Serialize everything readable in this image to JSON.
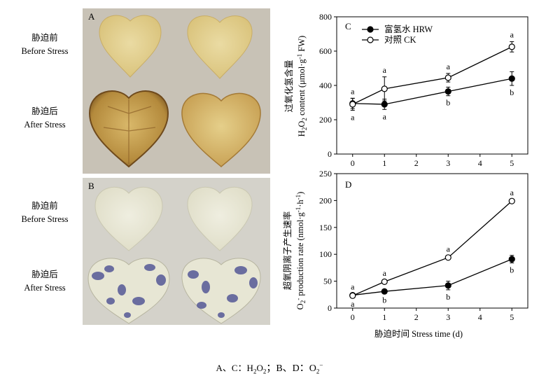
{
  "row_labels": {
    "A_before_cn": "胁迫前",
    "A_before_en": "Before Stress",
    "A_after_cn": "胁迫后",
    "A_after_en": "After Stress",
    "B_before_cn": "胁迫前",
    "B_before_en": "Before Stress",
    "B_after_cn": "胁迫后",
    "B_after_en": "After Stress"
  },
  "panels": {
    "A": "A",
    "B": "B"
  },
  "colors": {
    "photo_bg_A": "#c9c3b8",
    "leaf_A_before": "#e2cd8a",
    "leaf_A_after": "#b88d3b",
    "photo_bg_B": "#d6d4cc",
    "leaf_B": "#e8e7d6",
    "stain_B": "#4a4f93"
  },
  "caption": {
    "text_a": "A、C：H",
    "sub_a": "2",
    "text_b": "O",
    "sub_b": "2",
    "text_c": "；B、D：O",
    "sub_c": "2",
    "sup_c": "−"
  },
  "chart_data": [
    {
      "panel": "C",
      "type": "line",
      "x": [
        0,
        1,
        3,
        5
      ],
      "xlim": [
        -0.5,
        5.5
      ],
      "xticks": [
        "0",
        "1",
        "2",
        "3",
        "4",
        "5"
      ],
      "ylim": [
        0,
        800
      ],
      "yticks": [
        "0",
        "200",
        "400",
        "600",
        "800"
      ],
      "ylabel_cn": "过氧化氢含量",
      "ylabel_en": "H2O2 content (μmol·g-1 FW)",
      "legend": [
        {
          "name": "富氢水 HRW",
          "marker": "filled"
        },
        {
          "name": "对照 CK",
          "marker": "open"
        }
      ],
      "series": [
        {
          "name": "富氢水 HRW",
          "marker": "filled",
          "values": [
            295,
            290,
            365,
            440
          ],
          "errors": [
            30,
            30,
            25,
            40
          ],
          "letters": [
            "a",
            "a",
            "b",
            "b"
          ]
        },
        {
          "name": "对照 CK",
          "marker": "open",
          "values": [
            290,
            380,
            445,
            625
          ],
          "errors": [
            35,
            70,
            25,
            30
          ],
          "letters": [
            "a",
            "a",
            "a",
            "a"
          ]
        }
      ]
    },
    {
      "panel": "D",
      "type": "line",
      "x": [
        0,
        1,
        3,
        5
      ],
      "xlim": [
        -0.5,
        5.5
      ],
      "xticks": [
        "0",
        "1",
        "2",
        "3",
        "4",
        "5"
      ],
      "ylim": [
        0,
        250
      ],
      "yticks": [
        "0",
        "50",
        "100",
        "150",
        "200",
        "250"
      ],
      "ylabel_cn": "超氧阴离子产生速率",
      "ylabel_en": "O2- production rate (nmol·g-1·h-1)",
      "xlabel": "胁迫时间 Stress time (d)",
      "series": [
        {
          "name": "富氢水 HRW",
          "marker": "filled",
          "values": [
            24,
            31,
            42,
            91
          ],
          "errors": [
            3,
            3,
            8,
            7
          ],
          "letters": [
            "a",
            "b",
            "b",
            "b"
          ]
        },
        {
          "name": "对照 CK",
          "marker": "open",
          "values": [
            23,
            49,
            94,
            199
          ],
          "errors": [
            2,
            3,
            3,
            3
          ],
          "letters": [
            "a",
            "a",
            "a",
            "a"
          ]
        }
      ]
    }
  ]
}
